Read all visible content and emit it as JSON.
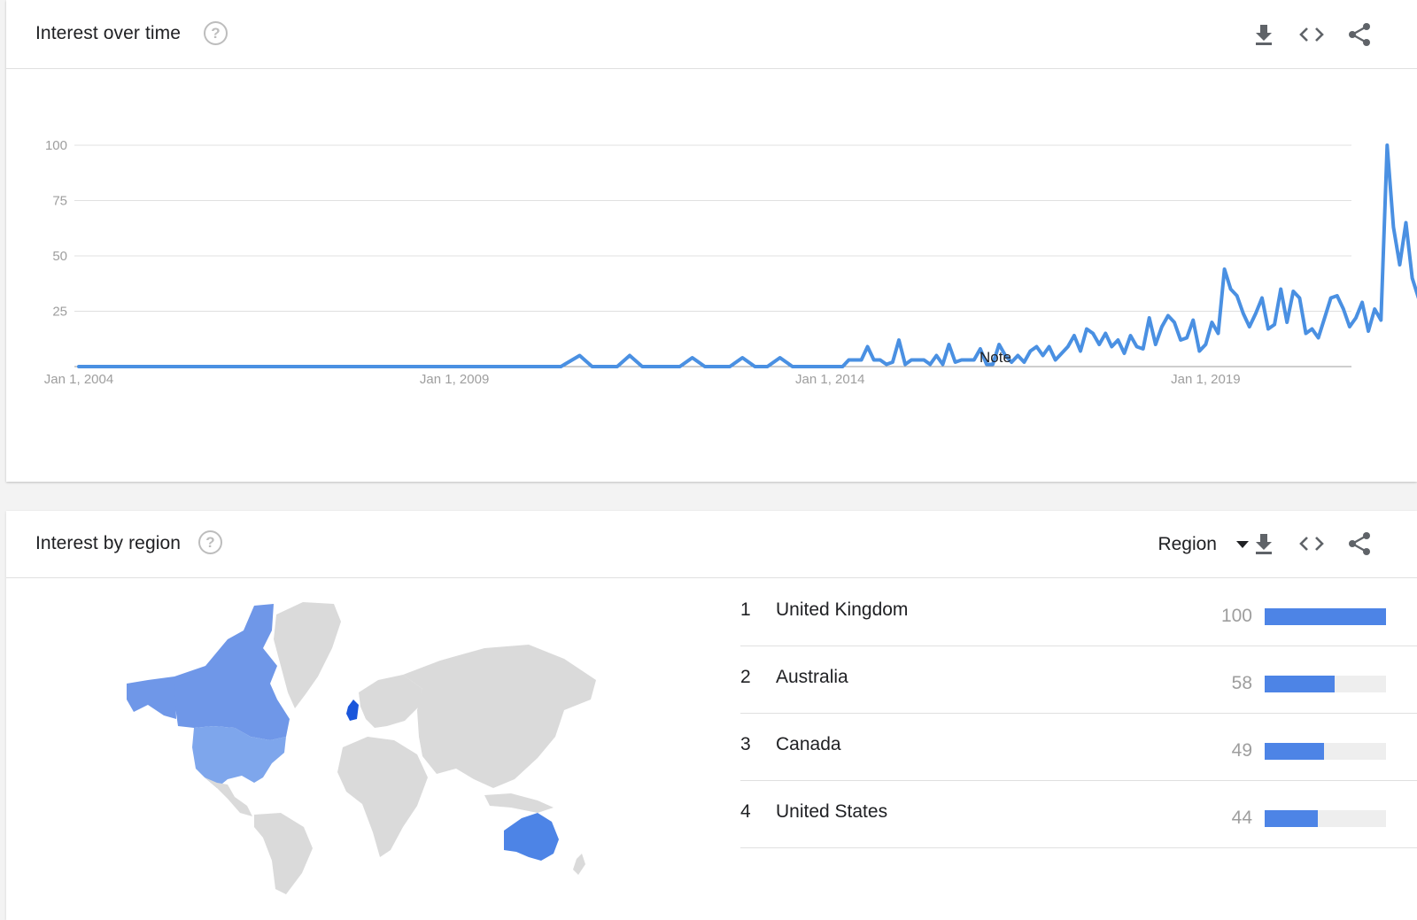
{
  "interest_over_time": {
    "title": "Interest over time",
    "icons": [
      "help-icon",
      "download-icon",
      "embed-icon",
      "share-icon"
    ],
    "note_label": "Note",
    "chart_data": {
      "type": "line",
      "title": "",
      "xlabel": "",
      "ylabel": "",
      "x_tick_labels": [
        "Jan 1, 2004",
        "Jan 1, 2009",
        "Jan 1, 2014",
        "Jan 1, 2019"
      ],
      "x_range": [
        "2004-01",
        "2021-01"
      ],
      "ylim": [
        0,
        100
      ],
      "y_ticks": [
        25,
        50,
        75,
        100
      ],
      "grid": true,
      "line_color": "#4a90e2",
      "series": [
        {
          "points": [
            [
              "2004-01",
              0
            ],
            [
              "2010-06",
              0
            ],
            [
              "2010-09",
              5
            ],
            [
              "2010-11",
              0
            ],
            [
              "2011-03",
              0
            ],
            [
              "2011-05",
              5
            ],
            [
              "2011-07",
              0
            ],
            [
              "2012-01",
              0
            ],
            [
              "2012-03",
              4
            ],
            [
              "2012-05",
              0
            ],
            [
              "2012-09",
              0
            ],
            [
              "2012-11",
              4
            ],
            [
              "2013-01",
              0
            ],
            [
              "2013-03",
              0
            ],
            [
              "2013-05",
              4
            ],
            [
              "2013-07",
              0
            ],
            [
              "2014-03",
              0
            ],
            [
              "2014-04",
              3
            ],
            [
              "2014-06",
              3
            ],
            [
              "2014-07",
              9
            ],
            [
              "2014-08",
              3
            ],
            [
              "2014-09",
              3
            ],
            [
              "2014-10",
              1
            ],
            [
              "2014-11",
              2
            ],
            [
              "2014-12",
              12
            ],
            [
              "2015-01",
              1
            ],
            [
              "2015-02",
              3
            ],
            [
              "2015-03",
              3
            ],
            [
              "2015-04",
              3
            ],
            [
              "2015-05",
              1
            ],
            [
              "2015-06",
              5
            ],
            [
              "2015-07",
              1
            ],
            [
              "2015-08",
              10
            ],
            [
              "2015-09",
              2
            ],
            [
              "2015-10",
              3
            ],
            [
              "2015-11",
              3
            ],
            [
              "2015-12",
              3
            ],
            [
              "2016-01",
              8
            ],
            [
              "2016-02",
              1
            ],
            [
              "2016-03",
              1
            ],
            [
              "2016-04",
              10
            ],
            [
              "2016-05",
              5
            ],
            [
              "2016-06",
              2
            ],
            [
              "2016-07",
              5
            ],
            [
              "2016-08",
              2
            ],
            [
              "2016-09",
              7
            ],
            [
              "2016-10",
              9
            ],
            [
              "2016-11",
              5
            ],
            [
              "2016-12",
              9
            ],
            [
              "2017-01",
              3
            ],
            [
              "2017-02",
              6
            ],
            [
              "2017-03",
              9
            ],
            [
              "2017-04",
              14
            ],
            [
              "2017-05",
              7
            ],
            [
              "2017-06",
              17
            ],
            [
              "2017-07",
              15
            ],
            [
              "2017-08",
              10
            ],
            [
              "2017-09",
              15
            ],
            [
              "2017-10",
              9
            ],
            [
              "2017-11",
              12
            ],
            [
              "2017-12",
              6
            ],
            [
              "2018-01",
              14
            ],
            [
              "2018-02",
              9
            ],
            [
              "2018-03",
              8
            ],
            [
              "2018-04",
              22
            ],
            [
              "2018-05",
              10
            ],
            [
              "2018-06",
              18
            ],
            [
              "2018-07",
              23
            ],
            [
              "2018-08",
              20
            ],
            [
              "2018-09",
              12
            ],
            [
              "2018-10",
              13
            ],
            [
              "2018-11",
              21
            ],
            [
              "2018-12",
              7
            ],
            [
              "2019-01",
              10
            ],
            [
              "2019-02",
              20
            ],
            [
              "2019-03",
              15
            ],
            [
              "2019-04",
              44
            ],
            [
              "2019-05",
              35
            ],
            [
              "2019-06",
              32
            ],
            [
              "2019-07",
              24
            ],
            [
              "2019-08",
              18
            ],
            [
              "2019-09",
              24
            ],
            [
              "2019-10",
              31
            ],
            [
              "2019-11",
              17
            ],
            [
              "2019-12",
              19
            ],
            [
              "2020-01",
              35
            ],
            [
              "2020-02",
              20
            ],
            [
              "2020-03",
              34
            ],
            [
              "2020-04",
              31
            ],
            [
              "2020-05",
              15
            ],
            [
              "2020-06",
              17
            ],
            [
              "2020-07",
              13
            ],
            [
              "2020-08",
              22
            ],
            [
              "2020-09",
              31
            ],
            [
              "2020-10",
              32
            ],
            [
              "2020-11",
              26
            ],
            [
              "2020-12",
              18
            ],
            [
              "2021-01",
              22
            ],
            [
              "2021-02",
              29
            ],
            [
              "2021-03",
              16
            ],
            [
              "2021-04",
              26
            ],
            [
              "2021-05",
              21
            ],
            [
              "2021-06",
              100
            ],
            [
              "2021-07",
              63
            ],
            [
              "2021-08",
              46
            ],
            [
              "2021-09",
              65
            ],
            [
              "2021-10",
              40
            ],
            [
              "2021-11",
              31
            ],
            [
              "2021-12",
              22
            ]
          ]
        }
      ]
    }
  },
  "interest_by_region": {
    "title": "Interest by region",
    "region_selector_label": "Region",
    "icons": [
      "help-icon",
      "dropdown-caret-icon",
      "download-icon",
      "embed-icon",
      "share-icon"
    ],
    "map": {
      "highlight_colors": {
        "strong": "#1a56db",
        "medium": "#5b8ce6",
        "light": "#7ea6ec"
      },
      "highlighted_regions": [
        "United Kingdom",
        "Australia",
        "Canada",
        "United States"
      ]
    },
    "chart_data": {
      "type": "bar",
      "categories": [
        "United Kingdom",
        "Australia",
        "Canada",
        "United States"
      ],
      "values": [
        100,
        58,
        49,
        44
      ],
      "xlim": [
        0,
        100
      ]
    },
    "rows": [
      {
        "rank": "1",
        "name": "United Kingdom",
        "value": "100",
        "fraction": 1.0
      },
      {
        "rank": "2",
        "name": "Australia",
        "value": "58",
        "fraction": 0.58
      },
      {
        "rank": "3",
        "name": "Canada",
        "value": "49",
        "fraction": 0.49
      },
      {
        "rank": "4",
        "name": "United States",
        "value": "44",
        "fraction": 0.44
      }
    ]
  }
}
